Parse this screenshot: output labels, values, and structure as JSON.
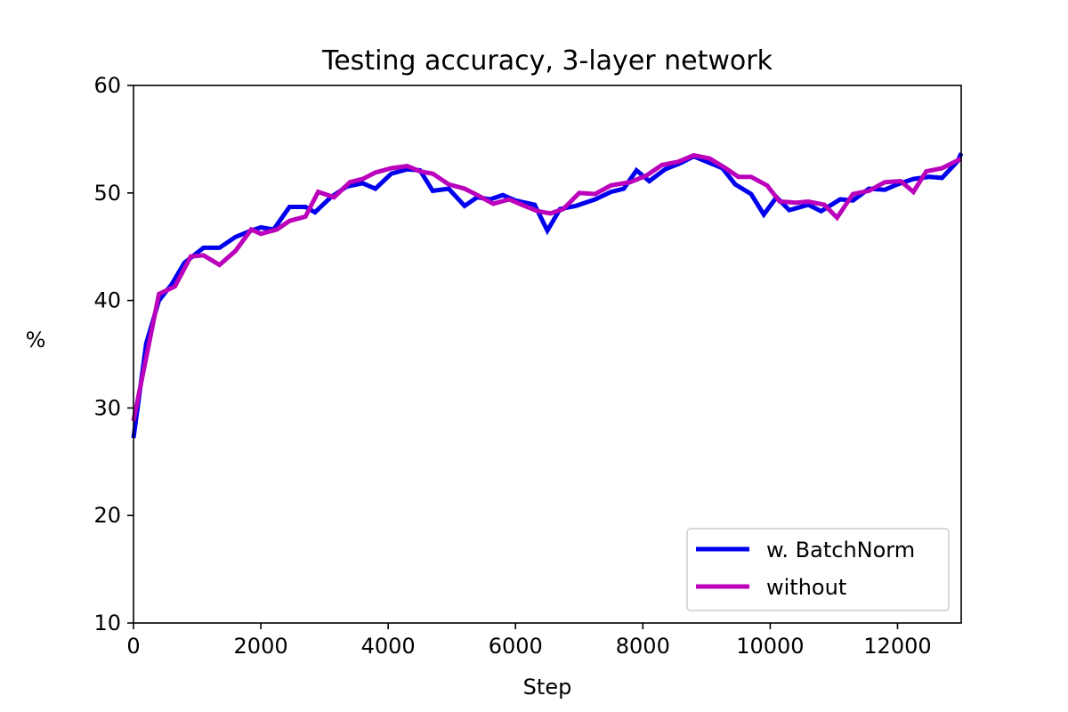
{
  "chart_data": {
    "type": "line",
    "title": "Testing accuracy, 3-layer network",
    "xlabel": "Step",
    "ylabel": "%",
    "xlim": [
      0,
      13000
    ],
    "ylim": [
      10,
      60
    ],
    "xticks": [
      0,
      2000,
      4000,
      6000,
      8000,
      10000,
      12000
    ],
    "yticks": [
      10,
      20,
      30,
      40,
      50,
      60
    ],
    "grid": false,
    "legend": {
      "position": "bottom-right"
    },
    "series": [
      {
        "name": "w. BatchNorm",
        "color": "#0000ee",
        "points": [
          [
            0,
            27.2
          ],
          [
            200,
            36.0
          ],
          [
            400,
            40.0
          ],
          [
            600,
            41.5
          ],
          [
            800,
            43.5
          ],
          [
            1100,
            44.9
          ],
          [
            1350,
            44.9
          ],
          [
            1600,
            45.9
          ],
          [
            1850,
            46.5
          ],
          [
            2000,
            46.8
          ],
          [
            2200,
            46.6
          ],
          [
            2450,
            48.7
          ],
          [
            2700,
            48.7
          ],
          [
            2850,
            48.2
          ],
          [
            3100,
            49.6
          ],
          [
            3350,
            50.6
          ],
          [
            3600,
            50.9
          ],
          [
            3800,
            50.4
          ],
          [
            4050,
            51.8
          ],
          [
            4300,
            52.2
          ],
          [
            4500,
            52.1
          ],
          [
            4700,
            50.2
          ],
          [
            4950,
            50.4
          ],
          [
            5200,
            48.8
          ],
          [
            5400,
            49.6
          ],
          [
            5600,
            49.4
          ],
          [
            5800,
            49.8
          ],
          [
            6000,
            49.3
          ],
          [
            6300,
            48.9
          ],
          [
            6500,
            46.5
          ],
          [
            6700,
            48.5
          ],
          [
            6950,
            48.8
          ],
          [
            7250,
            49.4
          ],
          [
            7500,
            50.1
          ],
          [
            7700,
            50.4
          ],
          [
            7900,
            52.1
          ],
          [
            8100,
            51.1
          ],
          [
            8350,
            52.2
          ],
          [
            8600,
            52.8
          ],
          [
            8800,
            53.4
          ],
          [
            9050,
            52.8
          ],
          [
            9250,
            52.3
          ],
          [
            9450,
            50.8
          ],
          [
            9700,
            49.9
          ],
          [
            9900,
            48.0
          ],
          [
            10100,
            49.6
          ],
          [
            10300,
            48.4
          ],
          [
            10600,
            48.9
          ],
          [
            10800,
            48.3
          ],
          [
            11100,
            49.4
          ],
          [
            11300,
            49.3
          ],
          [
            11550,
            50.4
          ],
          [
            11800,
            50.3
          ],
          [
            12000,
            50.8
          ],
          [
            12250,
            51.3
          ],
          [
            12500,
            51.5
          ],
          [
            12700,
            51.4
          ],
          [
            12950,
            53.0
          ],
          [
            13000,
            53.7
          ]
        ]
      },
      {
        "name": "without",
        "color": "#bb00bb",
        "points": [
          [
            0,
            28.8
          ],
          [
            200,
            34.7
          ],
          [
            400,
            40.6
          ],
          [
            650,
            41.3
          ],
          [
            900,
            44.1
          ],
          [
            1100,
            44.2
          ],
          [
            1350,
            43.3
          ],
          [
            1600,
            44.6
          ],
          [
            1850,
            46.6
          ],
          [
            2000,
            46.2
          ],
          [
            2250,
            46.6
          ],
          [
            2450,
            47.4
          ],
          [
            2700,
            47.8
          ],
          [
            2900,
            50.1
          ],
          [
            3150,
            49.6
          ],
          [
            3400,
            51.0
          ],
          [
            3600,
            51.3
          ],
          [
            3800,
            51.9
          ],
          [
            4050,
            52.3
          ],
          [
            4300,
            52.5
          ],
          [
            4500,
            52.0
          ],
          [
            4700,
            51.8
          ],
          [
            4950,
            50.8
          ],
          [
            5200,
            50.4
          ],
          [
            5400,
            49.8
          ],
          [
            5650,
            49.0
          ],
          [
            5900,
            49.4
          ],
          [
            6100,
            48.9
          ],
          [
            6350,
            48.3
          ],
          [
            6550,
            48.1
          ],
          [
            6750,
            48.5
          ],
          [
            7000,
            50.0
          ],
          [
            7250,
            49.9
          ],
          [
            7500,
            50.7
          ],
          [
            7800,
            51.0
          ],
          [
            8050,
            51.6
          ],
          [
            8300,
            52.6
          ],
          [
            8550,
            52.9
          ],
          [
            8800,
            53.5
          ],
          [
            9050,
            53.2
          ],
          [
            9300,
            52.3
          ],
          [
            9500,
            51.5
          ],
          [
            9700,
            51.5
          ],
          [
            9950,
            50.7
          ],
          [
            10150,
            49.2
          ],
          [
            10400,
            49.1
          ],
          [
            10600,
            49.2
          ],
          [
            10850,
            48.9
          ],
          [
            11050,
            47.7
          ],
          [
            11300,
            49.9
          ],
          [
            11550,
            50.2
          ],
          [
            11800,
            51.0
          ],
          [
            12050,
            51.1
          ],
          [
            12250,
            50.1
          ],
          [
            12450,
            52.0
          ],
          [
            12700,
            52.3
          ],
          [
            12900,
            52.9
          ],
          [
            13000,
            53.2
          ]
        ]
      }
    ]
  }
}
